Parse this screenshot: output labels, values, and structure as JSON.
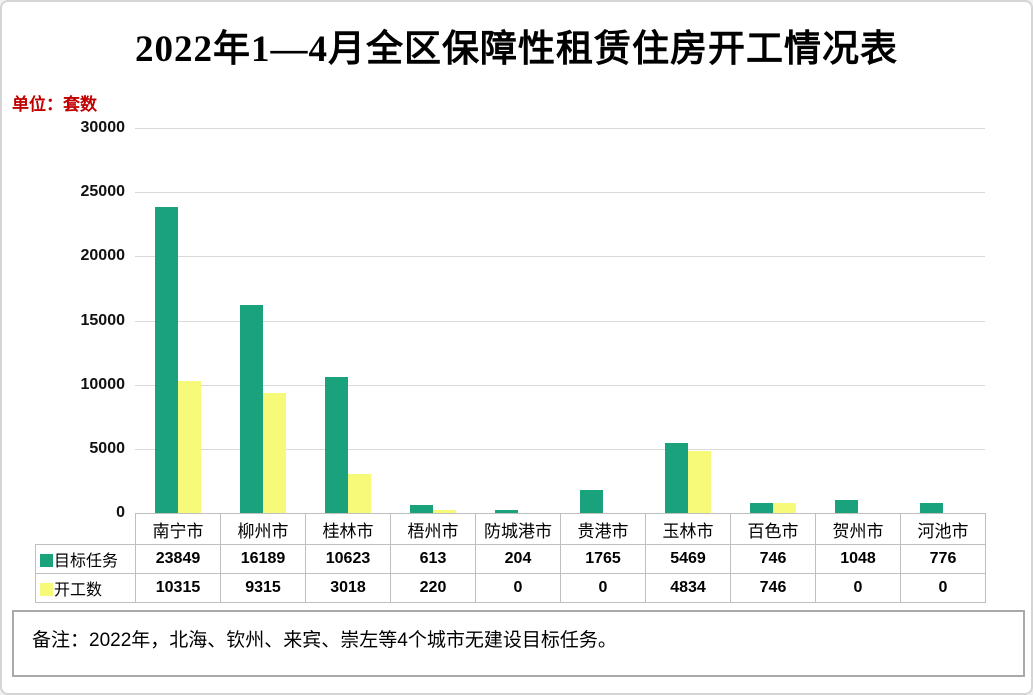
{
  "header": {
    "title": "2022年1—4月全区保障性租赁住房开工情况表",
    "unit_label": "单位：套数"
  },
  "chart_data": {
    "type": "bar",
    "title": "2022年1—4月全区保障性租赁住房开工情况表",
    "unit": "套数",
    "categories": [
      "南宁市",
      "柳州市",
      "桂林市",
      "梧州市",
      "防城港市",
      "贵港市",
      "玉林市",
      "百色市",
      "贺州市",
      "河池市"
    ],
    "series": [
      {
        "name": "目标任务",
        "color": "#1aa27d",
        "values": [
          23849,
          16189,
          10623,
          613,
          204,
          1765,
          5469,
          746,
          1048,
          776
        ]
      },
      {
        "name": "开工数",
        "color": "#f6fa78",
        "values": [
          10315,
          9315,
          3018,
          220,
          0,
          0,
          4834,
          746,
          0,
          0
        ]
      }
    ],
    "ylim": [
      0,
      30000
    ],
    "yticks": [
      0,
      5000,
      10000,
      15000,
      20000,
      25000,
      30000
    ],
    "grid": true,
    "legend_position": "table-rows-left",
    "data_table_shown": true
  },
  "footnote": {
    "text": "备注：2022年，北海、钦州、来宾、崇左等4个城市无建设目标任务。"
  },
  "colors": {
    "grid": "#d9d9d9",
    "table_border": "#bfbfbf",
    "note_border": "#a9a9a9",
    "unit_text": "#c00000",
    "series_target": "#1aa27d",
    "series_started": "#f6fa78"
  }
}
